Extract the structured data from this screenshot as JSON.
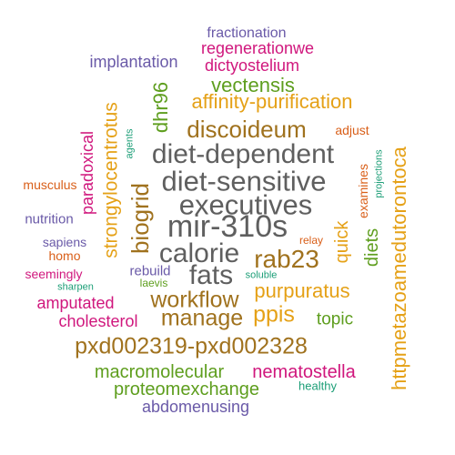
{
  "palette": {
    "purple": "#6a5aa8",
    "magenta": "#d0177d",
    "green": "#5e9e1e",
    "gold": "#e5a117",
    "brown": "#a0721e",
    "gray": "#5f5f5f",
    "orange": "#d95f19",
    "teal": "#1c9e77"
  },
  "words": {
    "fractionation": "fractionation",
    "regenerationwe": "regenerationwe",
    "implantation": "implantation",
    "dictyostelium": "dictyostelium",
    "vectensis": "vectensis",
    "dhr96": "dhr96",
    "affinity_purification": "affinity-purification",
    "strongylocentrotus": "strongylocentrotus",
    "discoideum": "discoideum",
    "adjust": "adjust",
    "httpmetazoamedutorontoca": "httpmetazoamedutorontoca",
    "agents": "agents",
    "paradoxical": "paradoxical",
    "diet_dependent": "diet-dependent",
    "projections": "projections",
    "examines": "examines",
    "musculus": "musculus",
    "diet_sensitive": "diet-sensitive",
    "biogrid": "biogrid",
    "executives": "executives",
    "nutrition": "nutrition",
    "mir_310s": "mir-310s",
    "quick": "quick",
    "diets": "diets",
    "sapiens": "sapiens",
    "relay": "relay",
    "homo": "homo",
    "calorie": "calorie",
    "rab23": "rab23",
    "seemingly": "seemingly",
    "rebuild": "rebuild",
    "fats": "fats",
    "soluble": "soluble",
    "sharpen": "sharpen",
    "laevis": "laevis",
    "purpuratus": "purpuratus",
    "amputated": "amputated",
    "workflow": "workflow",
    "cholesterol": "cholesterol",
    "manage": "manage",
    "ppis": "ppis",
    "topic": "topic",
    "pxd": "pxd002319-pxd002328",
    "macromolecular": "macromolecular",
    "nematostella": "nematostella",
    "proteomexchange": "proteomexchange",
    "healthy": "healthy",
    "abdomenusing": "abdomenusing"
  }
}
